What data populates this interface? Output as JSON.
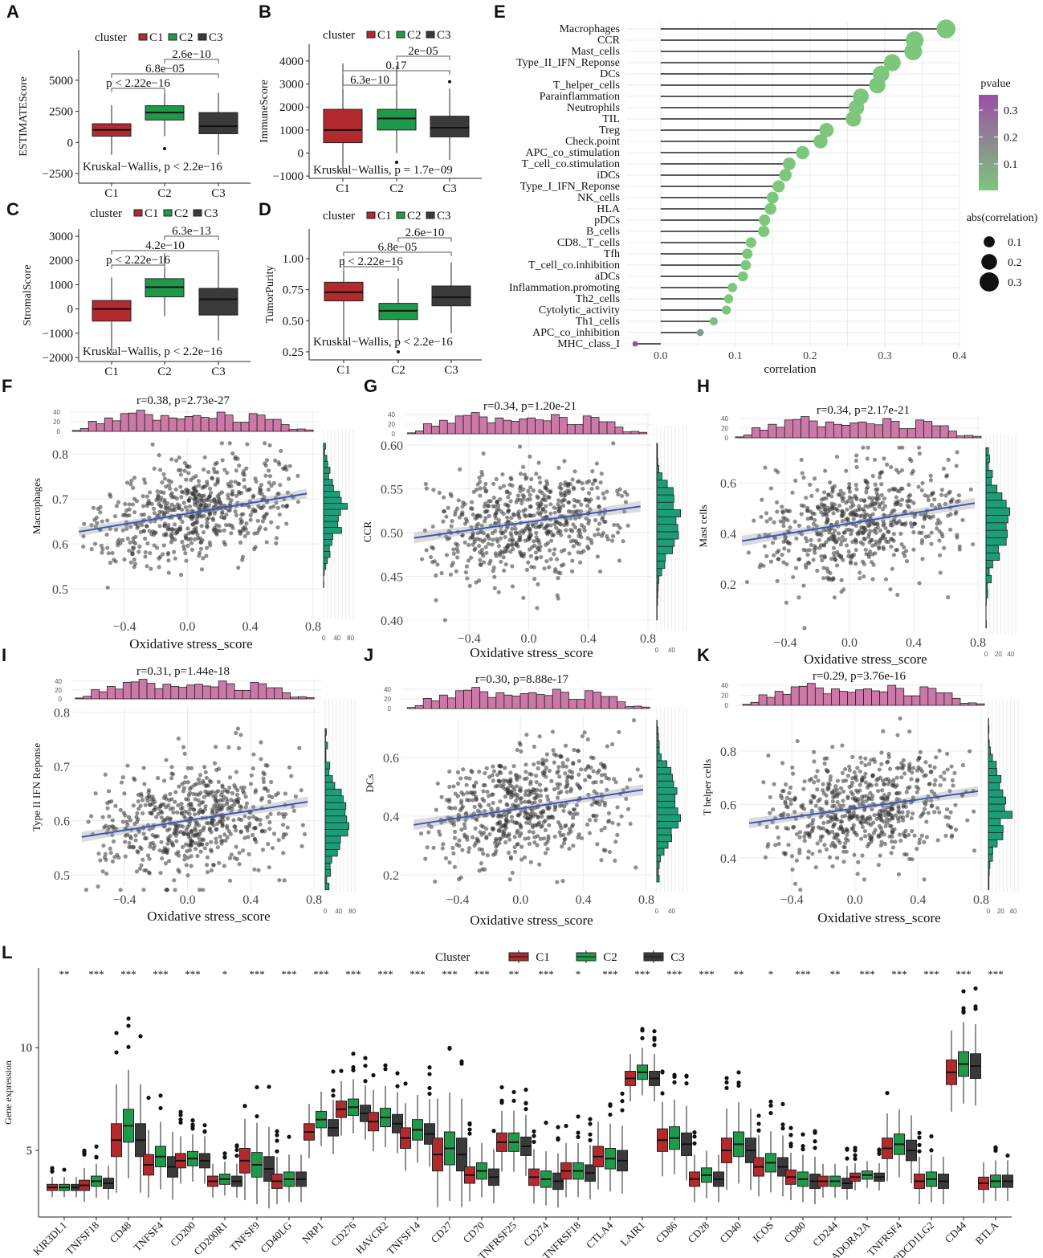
{
  "colors": {
    "C1": "#b22a2e",
    "C2": "#1f9a4b",
    "C3": "#3a3a3a",
    "hist_top": "#cc79a7",
    "hist_right": "#1b9e77",
    "fit_line": "#3f58b5",
    "points": "#333333",
    "p_low": "#7cc77c",
    "p_high": "#9c4fa6",
    "grid": "#ebebeb"
  },
  "chart_data": [
    {
      "panel": "A",
      "type": "boxplot",
      "legend_title": "cluster",
      "groups": [
        "C1",
        "C2",
        "C3"
      ],
      "ylabel": "ESTIMATEScore",
      "ylim": [
        -3280,
        7450
      ],
      "yticks": [
        -2500,
        0,
        2500,
        5000
      ],
      "ytick_labels": [
        "−2500",
        "0",
        "2500",
        "5000"
      ],
      "boxes": [
        {
          "low": -1000,
          "q1": 500,
          "med": 1000,
          "q3": 1500,
          "high": 3000,
          "outliers": []
        },
        {
          "low": 500,
          "q1": 1800,
          "med": 2400,
          "q3": 2950,
          "high": 4000,
          "outliers": [
            -500
          ]
        },
        {
          "low": -1000,
          "q1": 700,
          "med": 1300,
          "q3": 2400,
          "high": 4000,
          "outliers": []
        }
      ],
      "comparisons": [
        {
          "pair": [
            1,
            2
          ],
          "label": "2.6e−10"
        },
        {
          "pair": [
            0,
            2
          ],
          "label": "6.8e−05"
        },
        {
          "pair": [
            0,
            1
          ],
          "label": "p < 2.22e−16"
        }
      ],
      "test_label": "Kruskal−Wallis, p < 2.2e−16"
    },
    {
      "panel": "B",
      "type": "boxplot",
      "legend_title": "cluster",
      "groups": [
        "C1",
        "C2",
        "C3"
      ],
      "ylabel": "ImmuneScore",
      "ylim": [
        -1100,
        4730
      ],
      "yticks": [
        -1000,
        0,
        1000,
        2000,
        3000,
        4000
      ],
      "ytick_labels": [
        "−1000",
        "0",
        "1000",
        "2000",
        "3000",
        "4000"
      ],
      "boxes": [
        {
          "low": -800,
          "q1": 450,
          "med": 1000,
          "q3": 1900,
          "high": 3900,
          "outliers": []
        },
        {
          "low": 0,
          "q1": 1000,
          "med": 1500,
          "q3": 1900,
          "high": 3800,
          "outliers": [
            -400
          ]
        },
        {
          "low": -300,
          "q1": 700,
          "med": 1100,
          "q3": 1600,
          "high": 2800,
          "outliers": [
            3100
          ]
        }
      ],
      "comparisons": [
        {
          "pair": [
            1,
            2
          ],
          "label": "2e−05"
        },
        {
          "pair": [
            0,
            2
          ],
          "label": "0.17"
        },
        {
          "pair": [
            0,
            1
          ],
          "label": "6.3e−10"
        }
      ],
      "test_label": "Kruskal−Wallis, p = 1.7e−09"
    },
    {
      "panel": "C",
      "type": "boxplot",
      "legend_title": "cluster",
      "groups": [
        "C1",
        "C2",
        "C3"
      ],
      "ylabel": "StromalScore",
      "ylim": [
        -2166,
        3300
      ],
      "yticks": [
        -2000,
        -1000,
        0,
        1000,
        2000,
        3000
      ],
      "ytick_labels": [
        "−2000",
        "−1000",
        "0",
        "1000",
        "2000",
        "3000"
      ],
      "boxes": [
        {
          "low": -1800,
          "q1": -500,
          "med": 0,
          "q3": 350,
          "high": 1300,
          "outliers": []
        },
        {
          "low": -300,
          "q1": 500,
          "med": 900,
          "q3": 1250,
          "high": 2300,
          "outliers": []
        },
        {
          "low": -1300,
          "q1": -250,
          "med": 400,
          "q3": 850,
          "high": 2300,
          "outliers": []
        }
      ],
      "comparisons": [
        {
          "pair": [
            1,
            2
          ],
          "label": "6.3e−13"
        },
        {
          "pair": [
            0,
            2
          ],
          "label": "4.2e−10"
        },
        {
          "pair": [
            0,
            1
          ],
          "label": "p < 2.22e−16"
        }
      ],
      "test_label": "Kruskal−Wallis, p < 2.2e−16"
    },
    {
      "panel": "D",
      "type": "boxplot",
      "legend_title": "cluster",
      "groups": [
        "C1",
        "C2",
        "C3"
      ],
      "ylabel": "TumorPurity",
      "ylim": [
        0.185,
        1.239
      ],
      "yticks": [
        0.25,
        0.5,
        0.75,
        1.0
      ],
      "ytick_labels": [
        "0.25",
        "0.50",
        "0.75",
        "1.00"
      ],
      "boxes": [
        {
          "low": 0.33,
          "q1": 0.66,
          "med": 0.73,
          "q3": 0.81,
          "high": 1.0,
          "outliers": []
        },
        {
          "low": 0.33,
          "q1": 0.51,
          "med": 0.58,
          "q3": 0.64,
          "high": 0.84,
          "outliers": [
            0.25
          ]
        },
        {
          "low": 0.4,
          "q1": 0.62,
          "med": 0.69,
          "q3": 0.78,
          "high": 0.97,
          "outliers": []
        }
      ],
      "comparisons": [
        {
          "pair": [
            1,
            2
          ],
          "label": "2.6e−10"
        },
        {
          "pair": [
            0,
            2
          ],
          "label": "6.8e−05"
        },
        {
          "pair": [
            0,
            1
          ],
          "label": "p < 2.22e−16"
        }
      ],
      "test_label": "Kruskal−Wallis, p < 2.2e−16"
    },
    {
      "panel": "E",
      "type": "lollipop",
      "xlabel": "correlation",
      "xlim": [
        -0.046,
        0.4
      ],
      "xticks": [
        0.0,
        0.1,
        0.2,
        0.3,
        0.4
      ],
      "xtick_labels": [
        "0.0",
        "0.1",
        "0.2",
        "0.3",
        "0.4"
      ],
      "legend_color_title": "pvalue",
      "legend_color_ticks": [
        0.3,
        0.2,
        0.1
      ],
      "legend_color_labels": [
        "0.3",
        "0.2",
        "0.1"
      ],
      "legend_size_title": "abs(correlation)",
      "legend_size_values": [
        0.1,
        0.2,
        0.3
      ],
      "legend_size_labels": [
        "0.1",
        "0.2",
        "0.3"
      ],
      "items": [
        {
          "name": "Macrophages",
          "correlation": 0.382,
          "pvalue": 0.0
        },
        {
          "name": "CCR",
          "correlation": 0.34,
          "pvalue": 0.0
        },
        {
          "name": "Mast_cells",
          "correlation": 0.338,
          "pvalue": 0.0
        },
        {
          "name": "Type_II_IFN_Reponse",
          "correlation": 0.31,
          "pvalue": 0.0
        },
        {
          "name": "DCs",
          "correlation": 0.295,
          "pvalue": 0.0
        },
        {
          "name": "T_helper_cells",
          "correlation": 0.29,
          "pvalue": 0.0
        },
        {
          "name": "Parainflammation",
          "correlation": 0.268,
          "pvalue": 0.0
        },
        {
          "name": "Neutrophils",
          "correlation": 0.262,
          "pvalue": 0.0
        },
        {
          "name": "TIL",
          "correlation": 0.258,
          "pvalue": 0.0
        },
        {
          "name": "Treg",
          "correlation": 0.222,
          "pvalue": 0.0
        },
        {
          "name": "Check.point",
          "correlation": 0.214,
          "pvalue": 0.0
        },
        {
          "name": "APC_co_stimulation",
          "correlation": 0.19,
          "pvalue": 0.0
        },
        {
          "name": "T_cell_co.stimulation",
          "correlation": 0.172,
          "pvalue": 0.0
        },
        {
          "name": "iDCs",
          "correlation": 0.167,
          "pvalue": 0.0
        },
        {
          "name": "Type_I_IFN_Reponse",
          "correlation": 0.158,
          "pvalue": 0.0
        },
        {
          "name": "NK_cells",
          "correlation": 0.15,
          "pvalue": 0.0
        },
        {
          "name": "HLA",
          "correlation": 0.147,
          "pvalue": 0.0
        },
        {
          "name": "pDCs",
          "correlation": 0.139,
          "pvalue": 0.0
        },
        {
          "name": "B_cells",
          "correlation": 0.138,
          "pvalue": 0.0
        },
        {
          "name": "CD8._T_cells",
          "correlation": 0.121,
          "pvalue": 0.0
        },
        {
          "name": "Tfh",
          "correlation": 0.116,
          "pvalue": 0.0
        },
        {
          "name": "T_cell_co.inhibition",
          "correlation": 0.114,
          "pvalue": 0.0
        },
        {
          "name": "aDCs",
          "correlation": 0.11,
          "pvalue": 0.0
        },
        {
          "name": "Inflammation.promoting",
          "correlation": 0.096,
          "pvalue": 0.0
        },
        {
          "name": "Th2_cells",
          "correlation": 0.091,
          "pvalue": 0.0
        },
        {
          "name": "Cytolytic_activity",
          "correlation": 0.088,
          "pvalue": 0.01
        },
        {
          "name": "Th1_cells",
          "correlation": 0.071,
          "pvalue": 0.03
        },
        {
          "name": "APC_co_inhibition",
          "correlation": 0.053,
          "pvalue": 0.15
        },
        {
          "name": "MHC_class_I",
          "correlation": -0.034,
          "pvalue": 0.35
        }
      ]
    },
    {
      "panel": "F",
      "type": "scatter",
      "title": "r=0.38, p=2.73e-27",
      "r": 0.38,
      "p": "2.73e-27",
      "xlabel": "Oxidative stress_score",
      "ylabel": "Macrophages",
      "xlim": [
        -0.742,
        0.841
      ],
      "ylim": [
        0.434,
        0.836
      ],
      "xticks": [
        -0.4,
        0.0,
        0.4,
        0.8
      ],
      "xtick_labels": [
        "−0.4",
        "0.0",
        "0.4",
        "0.8"
      ],
      "yticks": [
        0.5,
        0.6,
        0.7,
        0.8
      ],
      "ytick_labels": [
        "0.5",
        "0.6",
        "0.7",
        "0.8"
      ],
      "fit": {
        "x": [
          -0.69,
          0.76
        ],
        "y": [
          0.627,
          0.712
        ]
      },
      "spread": 0.055,
      "top_hist_ticks": [
        "0",
        "20",
        "40"
      ],
      "right_hist_ticks": [
        "0",
        "40",
        "80"
      ],
      "right_hist_max": 88
    },
    {
      "panel": "G",
      "type": "scatter",
      "title": "r=0.34, p=1.20e-21",
      "r": 0.34,
      "p": "1.20e-21",
      "xlabel": "Oxidative stress_score",
      "ylabel": "CCR",
      "xlim": [
        -0.827,
        0.827
      ],
      "ylim": [
        0.388,
        0.613
      ],
      "xticks": [
        -0.4,
        0.0,
        0.4,
        0.8
      ],
      "xtick_labels": [
        "−0.4",
        "0.0",
        "0.4",
        "0.8"
      ],
      "yticks": [
        0.4,
        0.45,
        0.5,
        0.55,
        0.6
      ],
      "ytick_labels": [
        "0.40",
        "0.45",
        "0.50",
        "0.55",
        "0.60"
      ],
      "fit": {
        "x": [
          -0.77,
          0.75
        ],
        "y": [
          0.494,
          0.53
        ]
      },
      "spread": 0.033,
      "top_hist_ticks": [
        "0",
        "20",
        "40"
      ],
      "right_hist_ticks": [
        "0",
        "40"
      ],
      "right_hist_max": 80
    },
    {
      "panel": "H",
      "type": "scatter",
      "title": "r=0.34, p=2.17e-21",
      "r": 0.34,
      "p": "2.17e-21",
      "xlabel": "Oxidative stress_score",
      "ylabel": "Mast cells",
      "xlim": [
        -0.69,
        0.82
      ],
      "ylim": [
        0.0,
        0.762
      ],
      "xticks": [
        -0.4,
        0.0,
        0.4,
        0.8
      ],
      "xtick_labels": [
        "−0.4",
        "0.0",
        "0.4",
        "0.8"
      ],
      "yticks": [
        0.2,
        0.4,
        0.6
      ],
      "ytick_labels": [
        "0.2",
        "0.4",
        "0.6"
      ],
      "fit": {
        "x": [
          -0.67,
          0.78
        ],
        "y": [
          0.37,
          0.52
        ]
      },
      "spread": 0.11,
      "top_hist_ticks": [
        "0",
        "20",
        "40"
      ],
      "right_hist_ticks": [
        "0",
        "20",
        "40"
      ],
      "right_hist_max": 48
    },
    {
      "panel": "I",
      "type": "scatter",
      "title": "r=0.31, p=1.44e-18",
      "r": 0.31,
      "p": "1.44e-18",
      "xlabel": "Oxidative stress_score",
      "ylabel": "Type II IFN Reponse",
      "xlim": [
        -0.73,
        0.845
      ],
      "ylim": [
        0.469,
        0.81
      ],
      "xticks": [
        -0.4,
        0.0,
        0.4,
        0.8
      ],
      "xtick_labels": [
        "−0.4",
        "0.0",
        "0.4",
        "0.8"
      ],
      "yticks": [
        0.5,
        0.6,
        0.7,
        0.8
      ],
      "ytick_labels": [
        "0.5",
        "0.6",
        "0.7",
        "0.8"
      ],
      "fit": {
        "x": [
          -0.67,
          0.76
        ],
        "y": [
          0.57,
          0.635
        ]
      },
      "spread": 0.05,
      "top_hist_ticks": [
        "0",
        "20",
        "40"
      ],
      "right_hist_ticks": [
        "0",
        "40",
        "80"
      ],
      "right_hist_max": 88
    },
    {
      "panel": "J",
      "type": "scatter",
      "title": "r=0.30, p=8.88e-17",
      "r": 0.3,
      "p": "8.88e-17",
      "xlabel": "Oxidative stress_score",
      "ylabel": "DCs",
      "xlim": [
        -0.757,
        0.836
      ],
      "ylim": [
        0.142,
        0.745
      ],
      "xticks": [
        -0.4,
        0.0,
        0.4,
        0.8
      ],
      "xtick_labels": [
        "−0.4",
        "0.0",
        "0.4",
        "0.8"
      ],
      "yticks": [
        0.2,
        0.4,
        0.6
      ],
      "ytick_labels": [
        "0.2",
        "0.4",
        "0.6"
      ],
      "fit": {
        "x": [
          -0.68,
          0.78
        ],
        "y": [
          0.37,
          0.49
        ]
      },
      "spread": 0.095,
      "top_hist_ticks": [
        "0",
        "20",
        "40"
      ],
      "right_hist_ticks": [
        "0",
        "40"
      ],
      "right_hist_max": 80
    },
    {
      "panel": "K",
      "type": "scatter",
      "title": "r=0.29, p=3.76e-16",
      "r": 0.29,
      "p": "3.76e-16",
      "xlabel": "Oxidative stress_score",
      "ylabel": "T helper cells",
      "xlim": [
        -0.736,
        0.815
      ],
      "ylim": [
        0.274,
        0.965
      ],
      "xticks": [
        -0.4,
        0.0,
        0.4,
        0.8
      ],
      "xtick_labels": [
        "−0.4",
        "0.0",
        "0.4",
        "0.8"
      ],
      "yticks": [
        0.4,
        0.6,
        0.8
      ],
      "ytick_labels": [
        "0.4",
        "0.6",
        "0.8"
      ],
      "fit": {
        "x": [
          -0.67,
          0.78
        ],
        "y": [
          0.53,
          0.65
        ]
      },
      "spread": 0.1,
      "top_hist_ticks": [
        "0",
        "20",
        "40"
      ],
      "right_hist_ticks": [
        "0",
        "20",
        "40"
      ],
      "right_hist_max": 48
    },
    {
      "panel": "L",
      "type": "boxplot",
      "legend_title": "Cluster",
      "groups": [
        "C1",
        "C2",
        "C3"
      ],
      "ylabel": "Gene expression",
      "ylim": [
        1.76,
        13.87
      ],
      "yticks": [
        5,
        10
      ],
      "ytick_labels": [
        "5",
        "10"
      ],
      "genes": [
        "KIR3DL1",
        "TNFSF18",
        "CD48",
        "TNFSF4",
        "CD200",
        "CD200R1",
        "TNFSF9",
        "CD40LG",
        "NRP1",
        "CD276",
        "HAVCR2",
        "TNFSF14",
        "CD27",
        "CD70",
        "TNFRSF25",
        "CD274",
        "TNFRSF18",
        "CTLA4",
        "LAIR1",
        "CD86",
        "CD28",
        "CD40",
        "ICOS",
        "CD80",
        "CD244",
        "ADORA2A",
        "TNFRSF4",
        "PDCD1LG2",
        "CD44",
        "BTLA"
      ],
      "significance": [
        "**",
        "***",
        "***",
        "***",
        "***",
        "*",
        "***",
        "***",
        "***",
        "***",
        "***",
        "***",
        "***",
        "***",
        "**",
        "***",
        "*",
        "***",
        "***",
        "***",
        "***",
        "**",
        "*",
        "***",
        "**",
        "***",
        "***",
        "***",
        "***",
        "***"
      ],
      "medians": {
        "C1": [
          3.2,
          3.3,
          5.5,
          4.3,
          4.5,
          3.5,
          4.5,
          3.5,
          5.9,
          7.0,
          6.4,
          5.6,
          4.8,
          3.8,
          5.4,
          3.7,
          4.0,
          4.7,
          8.5,
          5.5,
          3.6,
          5.0,
          4.2,
          3.7,
          3.5,
          3.7,
          5.1,
          3.5,
          8.8,
          3.4
        ],
        "C2": [
          3.2,
          3.5,
          6.2,
          4.7,
          4.6,
          3.6,
          4.3,
          3.6,
          6.5,
          7.1,
          6.6,
          6.0,
          5.1,
          4.0,
          5.4,
          3.6,
          4.0,
          4.6,
          8.8,
          5.6,
          3.8,
          5.3,
          4.4,
          3.6,
          3.5,
          3.8,
          5.3,
          3.6,
          9.2,
          3.5
        ],
        "C3": [
          3.2,
          3.4,
          5.5,
          4.2,
          4.5,
          3.5,
          4.1,
          3.6,
          6.1,
          6.8,
          6.3,
          5.8,
          4.8,
          3.7,
          5.2,
          3.5,
          3.9,
          4.5,
          8.5,
          5.3,
          3.6,
          5.0,
          4.2,
          3.5,
          3.4,
          3.7,
          5.0,
          3.5,
          9.1,
          3.5
        ]
      },
      "iqr_half": [
        0.15,
        0.25,
        0.8,
        0.5,
        0.35,
        0.25,
        0.6,
        0.35,
        0.4,
        0.4,
        0.45,
        0.5,
        0.8,
        0.4,
        0.45,
        0.4,
        0.4,
        0.5,
        0.35,
        0.55,
        0.35,
        0.6,
        0.45,
        0.35,
        0.25,
        0.2,
        0.5,
        0.35,
        0.6,
        0.3
      ]
    }
  ]
}
